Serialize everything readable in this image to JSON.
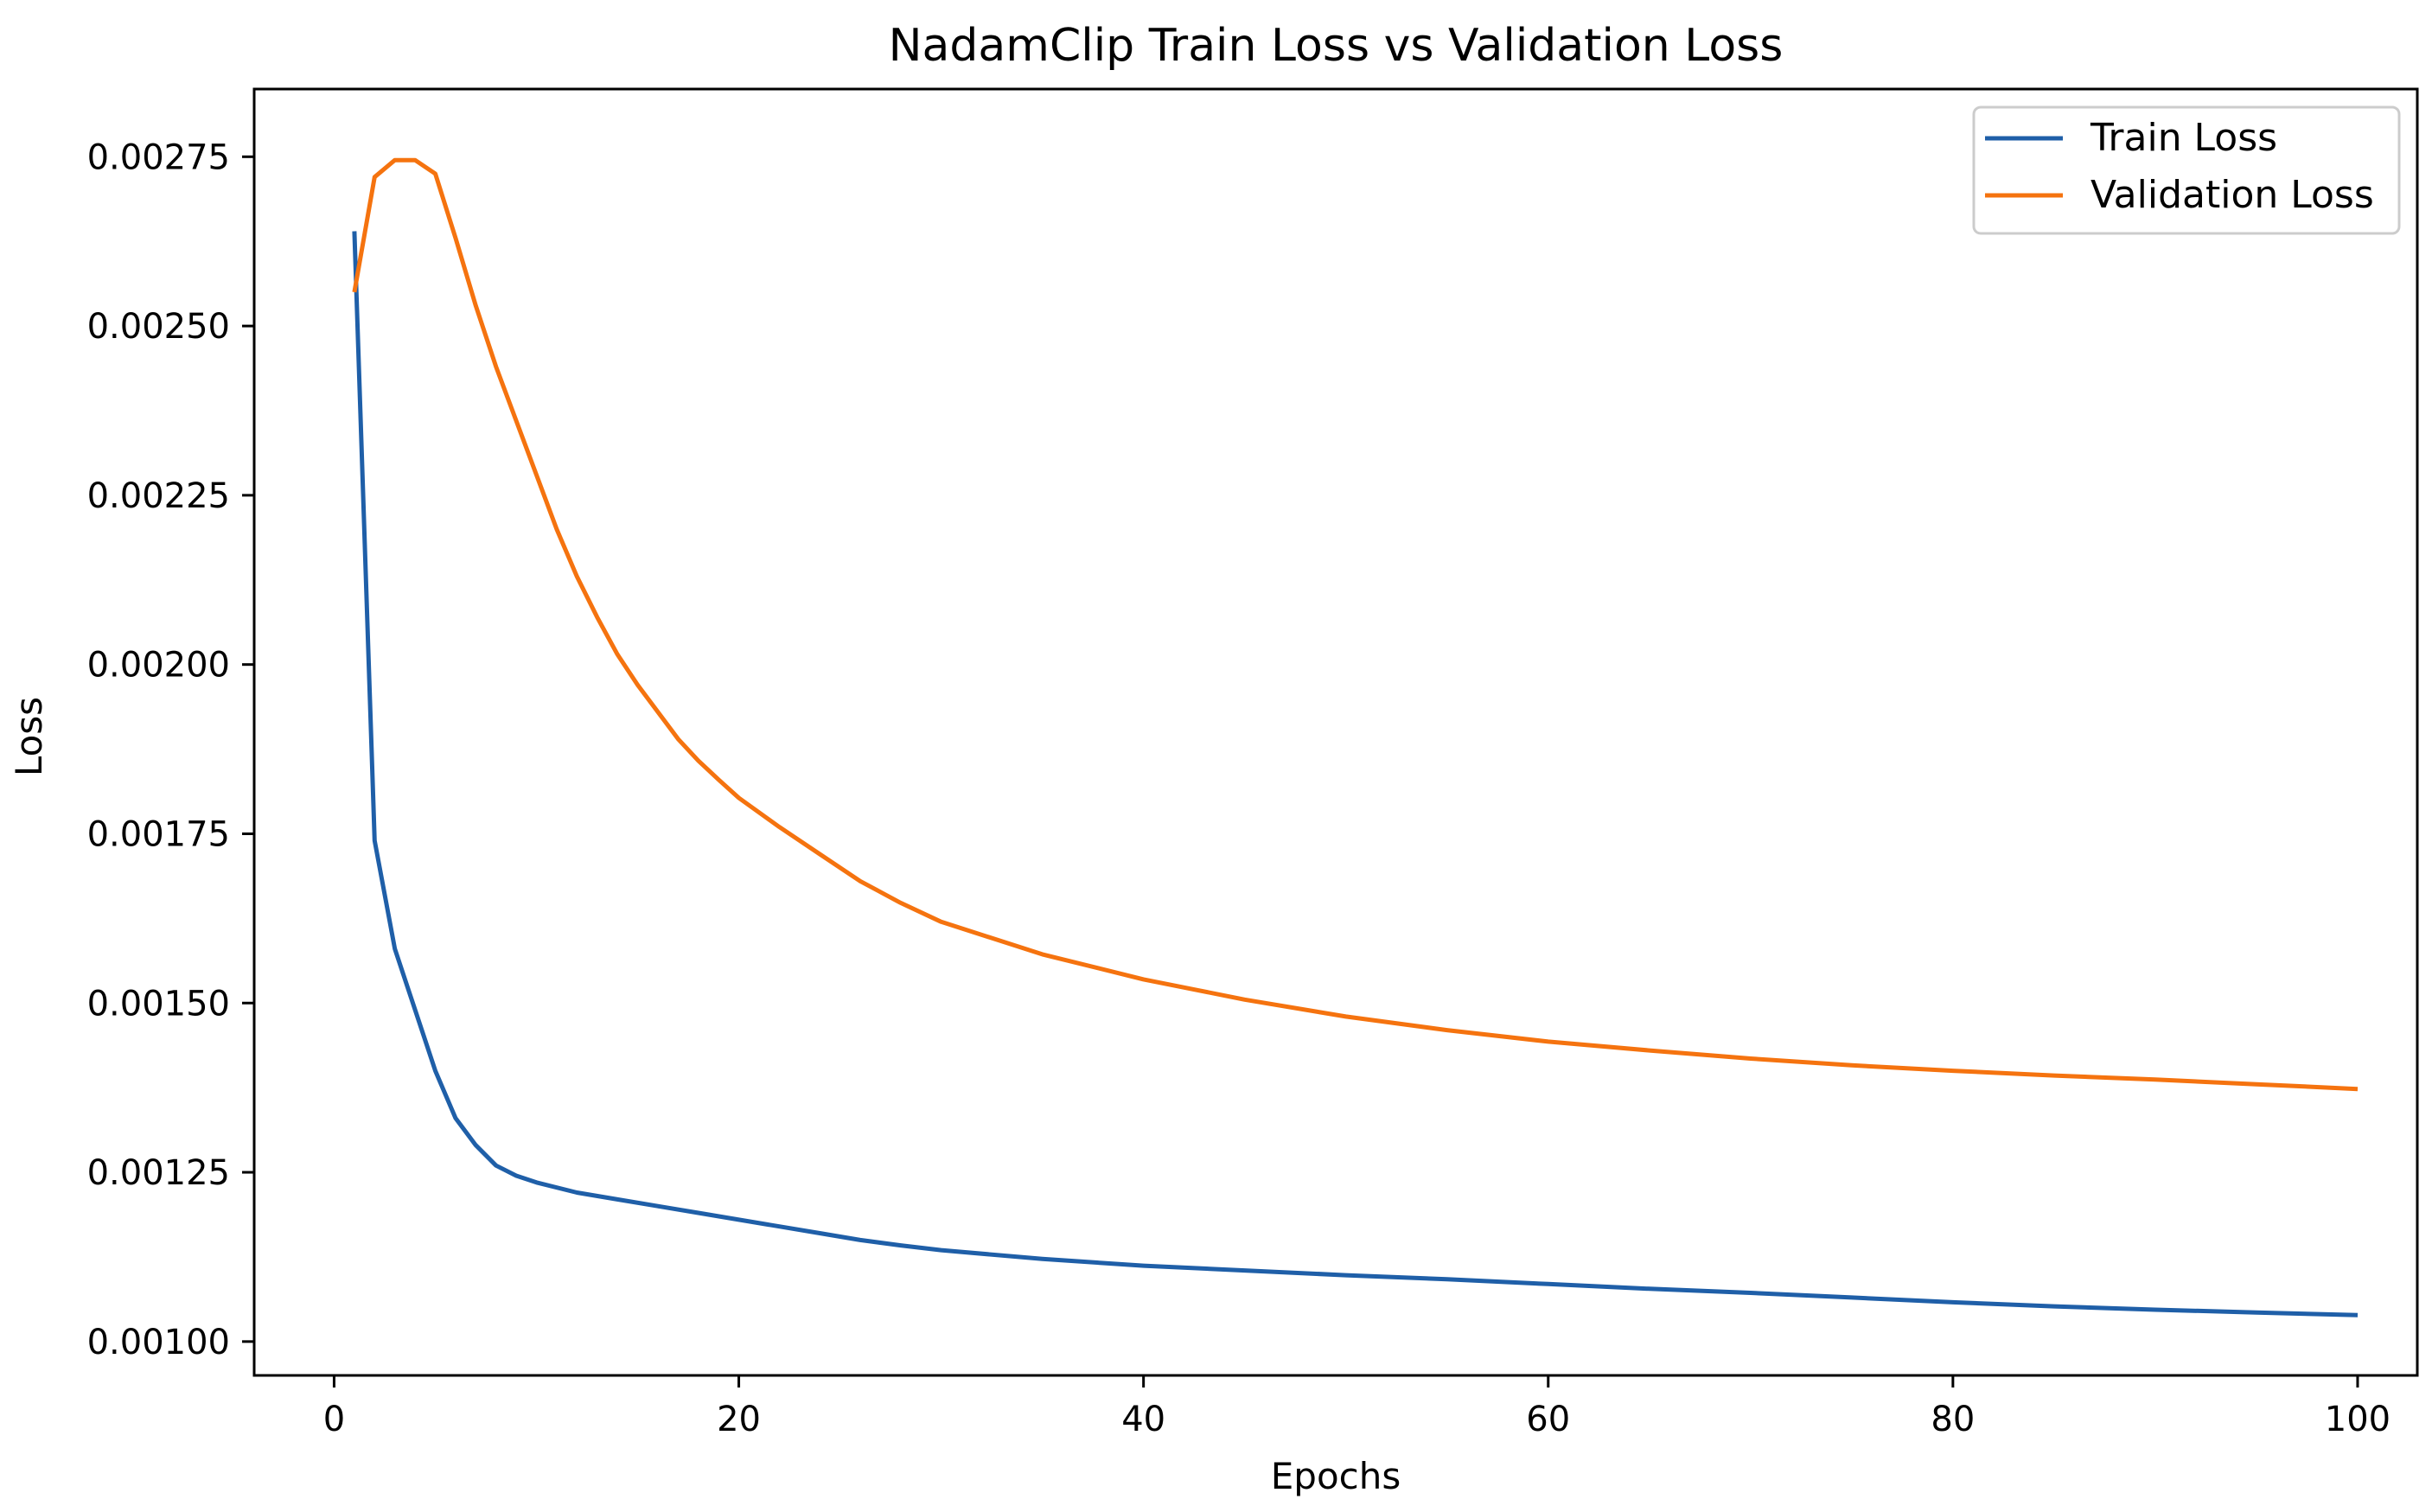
{
  "chart_data": {
    "type": "line",
    "title": "NadamClip Train Loss vs Validation Loss",
    "xlabel": "Epochs",
    "ylabel": "Loss",
    "xlim": [
      -3.95,
      102.95
    ],
    "ylim": [
      0.00095,
      0.00285
    ],
    "xticks": [
      0,
      20,
      40,
      60,
      80,
      100
    ],
    "xtick_labels": [
      "0",
      "20",
      "40",
      "60",
      "80",
      "100"
    ],
    "yticks": [
      0.001,
      0.00125,
      0.0015,
      0.00175,
      0.002,
      0.00225,
      0.0025,
      0.00275
    ],
    "ytick_labels": [
      "0.00100",
      "0.00125",
      "0.00150",
      "0.00175",
      "0.00200",
      "0.00225",
      "0.00250",
      "0.00275"
    ],
    "grid": false,
    "legend_position": "upper-right",
    "series": [
      {
        "name": "Train Loss",
        "color": "#1f5fa8",
        "x": [
          1,
          2,
          3,
          4,
          5,
          6,
          7,
          8,
          9,
          10,
          12,
          14,
          16,
          18,
          20,
          22,
          24,
          26,
          28,
          30,
          35,
          40,
          45,
          50,
          55,
          60,
          65,
          70,
          75,
          80,
          85,
          90,
          95,
          100
        ],
        "values": [
          0.00264,
          0.00174,
          0.00158,
          0.00149,
          0.0014,
          0.00133,
          0.00129,
          0.00126,
          0.001245,
          0.001235,
          0.00122,
          0.00121,
          0.0012,
          0.00119,
          0.00118,
          0.00117,
          0.00116,
          0.00115,
          0.001142,
          0.001135,
          0.001122,
          0.001112,
          0.001105,
          0.001098,
          0.001092,
          0.001085,
          0.001078,
          0.001072,
          0.001065,
          0.001058,
          0.001052,
          0.001047,
          0.001043,
          0.001039
        ]
      },
      {
        "name": "Validation Loss",
        "color": "#f5730f",
        "x": [
          1,
          2,
          3,
          4,
          5,
          6,
          7,
          8,
          9,
          10,
          11,
          12,
          13,
          14,
          15,
          16,
          17,
          18,
          19,
          20,
          22,
          24,
          26,
          28,
          30,
          35,
          40,
          45,
          50,
          55,
          60,
          65,
          70,
          75,
          80,
          85,
          90,
          95,
          100
        ],
        "values": [
          0.00255,
          0.00272,
          0.002745,
          0.002745,
          0.002725,
          0.00263,
          0.00253,
          0.00244,
          0.00236,
          0.00228,
          0.0022,
          0.00213,
          0.00207,
          0.002015,
          0.00197,
          0.00193,
          0.00189,
          0.001858,
          0.00183,
          0.001803,
          0.00176,
          0.00172,
          0.00168,
          0.001648,
          0.00162,
          0.001572,
          0.001535,
          0.001505,
          0.00148,
          0.00146,
          0.001443,
          0.00143,
          0.001418,
          0.001408,
          0.0014,
          0.001393,
          0.001387,
          0.00138,
          0.001373
        ]
      }
    ]
  }
}
